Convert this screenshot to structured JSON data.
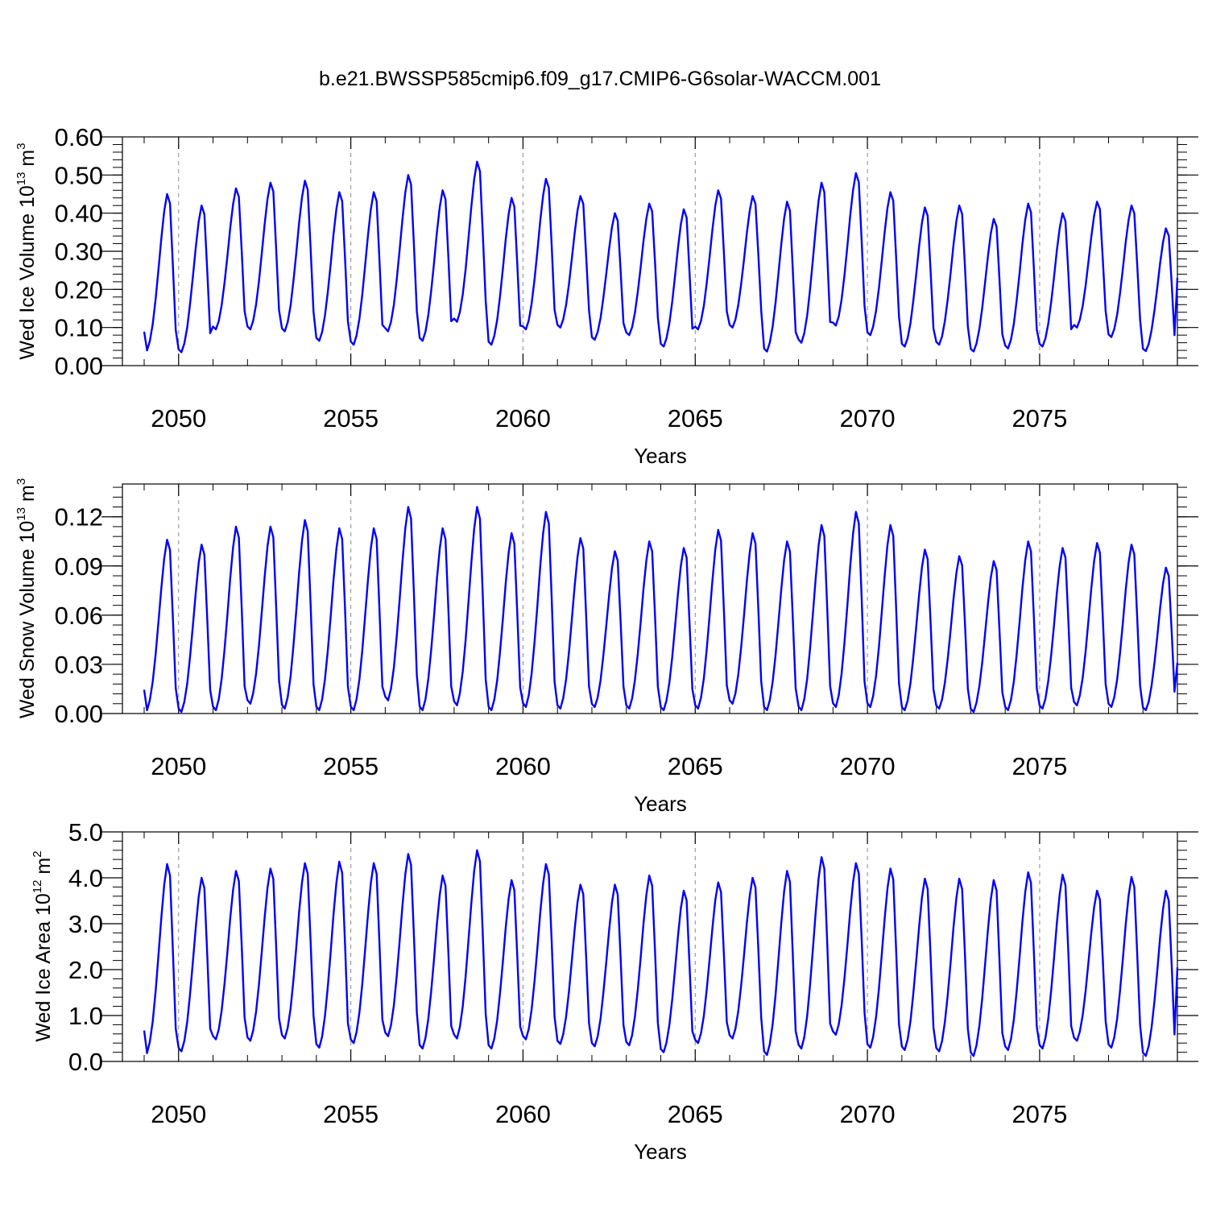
{
  "title": "b.e21.BWSSP585cmip6.f09_g17.CMIP6-G6solar-WACCM.001",
  "colors": {
    "line": "#0000ff",
    "axis": "#000000",
    "refline": "#888888"
  },
  "chart_data": [
    {
      "type": "line",
      "name": "ice-volume",
      "ylabel": {
        "main": "Wed Ice Volume 10",
        "sup": "13",
        "unit": " m",
        "unit_sup": "3"
      },
      "xlabel": "Years",
      "xlim": [
        2049,
        2079
      ],
      "ylim": [
        0,
        0.6
      ],
      "yticks": [
        0,
        0.1,
        0.2,
        0.3,
        0.4,
        0.5,
        0.6
      ],
      "ytick_labels": [
        "0.00",
        "0.10",
        "0.20",
        "0.30",
        "0.40",
        "0.50",
        "0.60"
      ],
      "xticks": [
        2050,
        2055,
        2060,
        2065,
        2070,
        2075
      ],
      "xtick_labels": [
        "2050",
        "2055",
        "2060",
        "2065",
        "2070",
        "2075"
      ],
      "start_year": 2049,
      "annual_peaks": [
        0.45,
        0.42,
        0.465,
        0.48,
        0.485,
        0.455,
        0.455,
        0.5,
        0.46,
        0.535,
        0.44,
        0.49,
        0.445,
        0.4,
        0.425,
        0.41,
        0.46,
        0.445,
        0.43,
        0.48,
        0.505,
        0.455,
        0.415,
        0.42,
        0.385,
        0.425,
        0.4,
        0.43,
        0.42,
        0.36
      ],
      "annual_mins": [
        0.04,
        0.035,
        0.095,
        0.095,
        0.09,
        0.065,
        0.055,
        0.09,
        0.065,
        0.115,
        0.055,
        0.095,
        0.1,
        0.068,
        0.08,
        0.05,
        0.095,
        0.1,
        0.037,
        0.06,
        0.105,
        0.08,
        0.05,
        0.055,
        0.037,
        0.045,
        0.05,
        0.1,
        0.075,
        0.038
      ],
      "end_value": 0.23
    },
    {
      "type": "line",
      "name": "snow-volume",
      "ylabel": {
        "main": "Wed Snow Volume 10",
        "sup": "13",
        "unit": " m",
        "unit_sup": "3"
      },
      "xlabel": "Years",
      "xlim": [
        2049,
        2079
      ],
      "ylim": [
        0,
        0.14
      ],
      "yticks": [
        0,
        0.03,
        0.06,
        0.09,
        0.12
      ],
      "ytick_labels": [
        "0.00",
        "0.03",
        "0.06",
        "0.09",
        "0.12"
      ],
      "xticks": [
        2050,
        2055,
        2060,
        2065,
        2070,
        2075
      ],
      "xtick_labels": [
        "2050",
        "2055",
        "2060",
        "2065",
        "2070",
        "2075"
      ],
      "start_year": 2049,
      "annual_peaks": [
        0.106,
        0.103,
        0.114,
        0.114,
        0.118,
        0.113,
        0.113,
        0.126,
        0.113,
        0.126,
        0.11,
        0.123,
        0.107,
        0.099,
        0.105,
        0.101,
        0.112,
        0.11,
        0.105,
        0.115,
        0.123,
        0.115,
        0.1,
        0.096,
        0.093,
        0.105,
        0.101,
        0.104,
        0.103,
        0.089
      ],
      "annual_mins": [
        0.002,
        0.001,
        0.002,
        0.006,
        0.003,
        0.002,
        0.002,
        0.008,
        0.002,
        0.005,
        0.002,
        0.004,
        0.003,
        0.004,
        0.003,
        0.002,
        0.003,
        0.006,
        0.002,
        0.002,
        0.004,
        0.004,
        0.002,
        0.003,
        0.001,
        0.002,
        0.003,
        0.005,
        0.004,
        0.002
      ],
      "end_value": 0.031
    },
    {
      "type": "line",
      "name": "ice-area",
      "ylabel": {
        "main": "Wed Ice Area 10",
        "sup": "12",
        "unit": " m",
        "unit_sup": "2"
      },
      "xlabel": "Years",
      "xlim": [
        2049,
        2079
      ],
      "ylim": [
        0,
        5
      ],
      "yticks": [
        0,
        1,
        2,
        3,
        4,
        5
      ],
      "ytick_labels": [
        "0.0",
        "1.0",
        "2.0",
        "3.0",
        "4.0",
        "5.0"
      ],
      "xticks": [
        2050,
        2055,
        2060,
        2065,
        2070,
        2075
      ],
      "xtick_labels": [
        "2050",
        "2055",
        "2060",
        "2065",
        "2070",
        "2075"
      ],
      "start_year": 2049,
      "annual_peaks": [
        4.3,
        4.0,
        4.15,
        4.2,
        4.32,
        4.35,
        4.32,
        4.52,
        4.05,
        4.6,
        3.95,
        4.3,
        3.85,
        3.85,
        4.05,
        3.72,
        3.9,
        4.0,
        4.15,
        4.45,
        4.32,
        4.2,
        3.98,
        3.98,
        3.95,
        4.12,
        4.07,
        3.72,
        4.02,
        3.72
      ],
      "annual_mins": [
        0.18,
        0.22,
        0.48,
        0.45,
        0.5,
        0.3,
        0.4,
        0.55,
        0.28,
        0.5,
        0.28,
        0.48,
        0.38,
        0.33,
        0.35,
        0.2,
        0.4,
        0.5,
        0.14,
        0.28,
        0.58,
        0.3,
        0.25,
        0.22,
        0.12,
        0.25,
        0.28,
        0.45,
        0.3,
        0.12
      ],
      "end_value": 2.05
    }
  ]
}
